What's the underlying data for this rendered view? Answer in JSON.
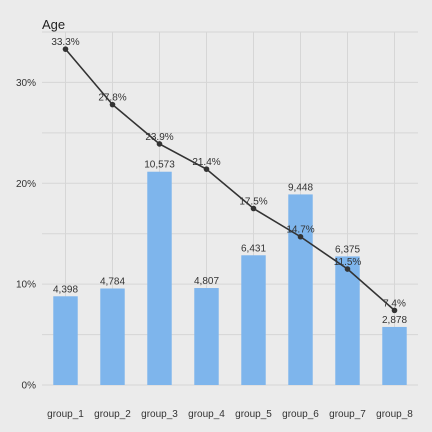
{
  "chart_data": {
    "type": "bar",
    "title": "Age",
    "xlabel": "",
    "ylabel": "",
    "categories": [
      "group_1",
      "group_2",
      "group_3",
      "group_4",
      "group_5",
      "group_6",
      "group_7",
      "group_8"
    ],
    "series": [
      {
        "type": "bar",
        "values": [
          4398,
          4784,
          10573,
          4807,
          6431,
          9448,
          6375,
          2878
        ],
        "value_labels": [
          "4,398",
          "4,784",
          "10,573",
          "4,807",
          "6,431",
          "9,448",
          "6,375",
          "2,878"
        ],
        "color": "#7eb5ec"
      },
      {
        "type": "line",
        "values": [
          33.3,
          27.8,
          23.9,
          21.4,
          17.5,
          14.7,
          11.5,
          7.4
        ],
        "value_labels": [
          "33.3%",
          "27.8%",
          "23.9%",
          "21.4%",
          "17.5%",
          "14.7%",
          "11.5%",
          "7.4%"
        ],
        "color": "#333333",
        "axis": "percent"
      }
    ],
    "y_ticks": [
      0,
      10,
      20,
      30
    ],
    "y_tick_labels": [
      "0%",
      "10%",
      "20%",
      "30%"
    ],
    "percent_axis_range": [
      0,
      35
    ],
    "count_axis_range": [
      0,
      17500
    ],
    "grid": true,
    "legend": "none",
    "colors": {
      "background": "#ebebeb",
      "grid": "#d6d6d6",
      "bar": "#7eb5ec",
      "line": "#333333"
    }
  }
}
